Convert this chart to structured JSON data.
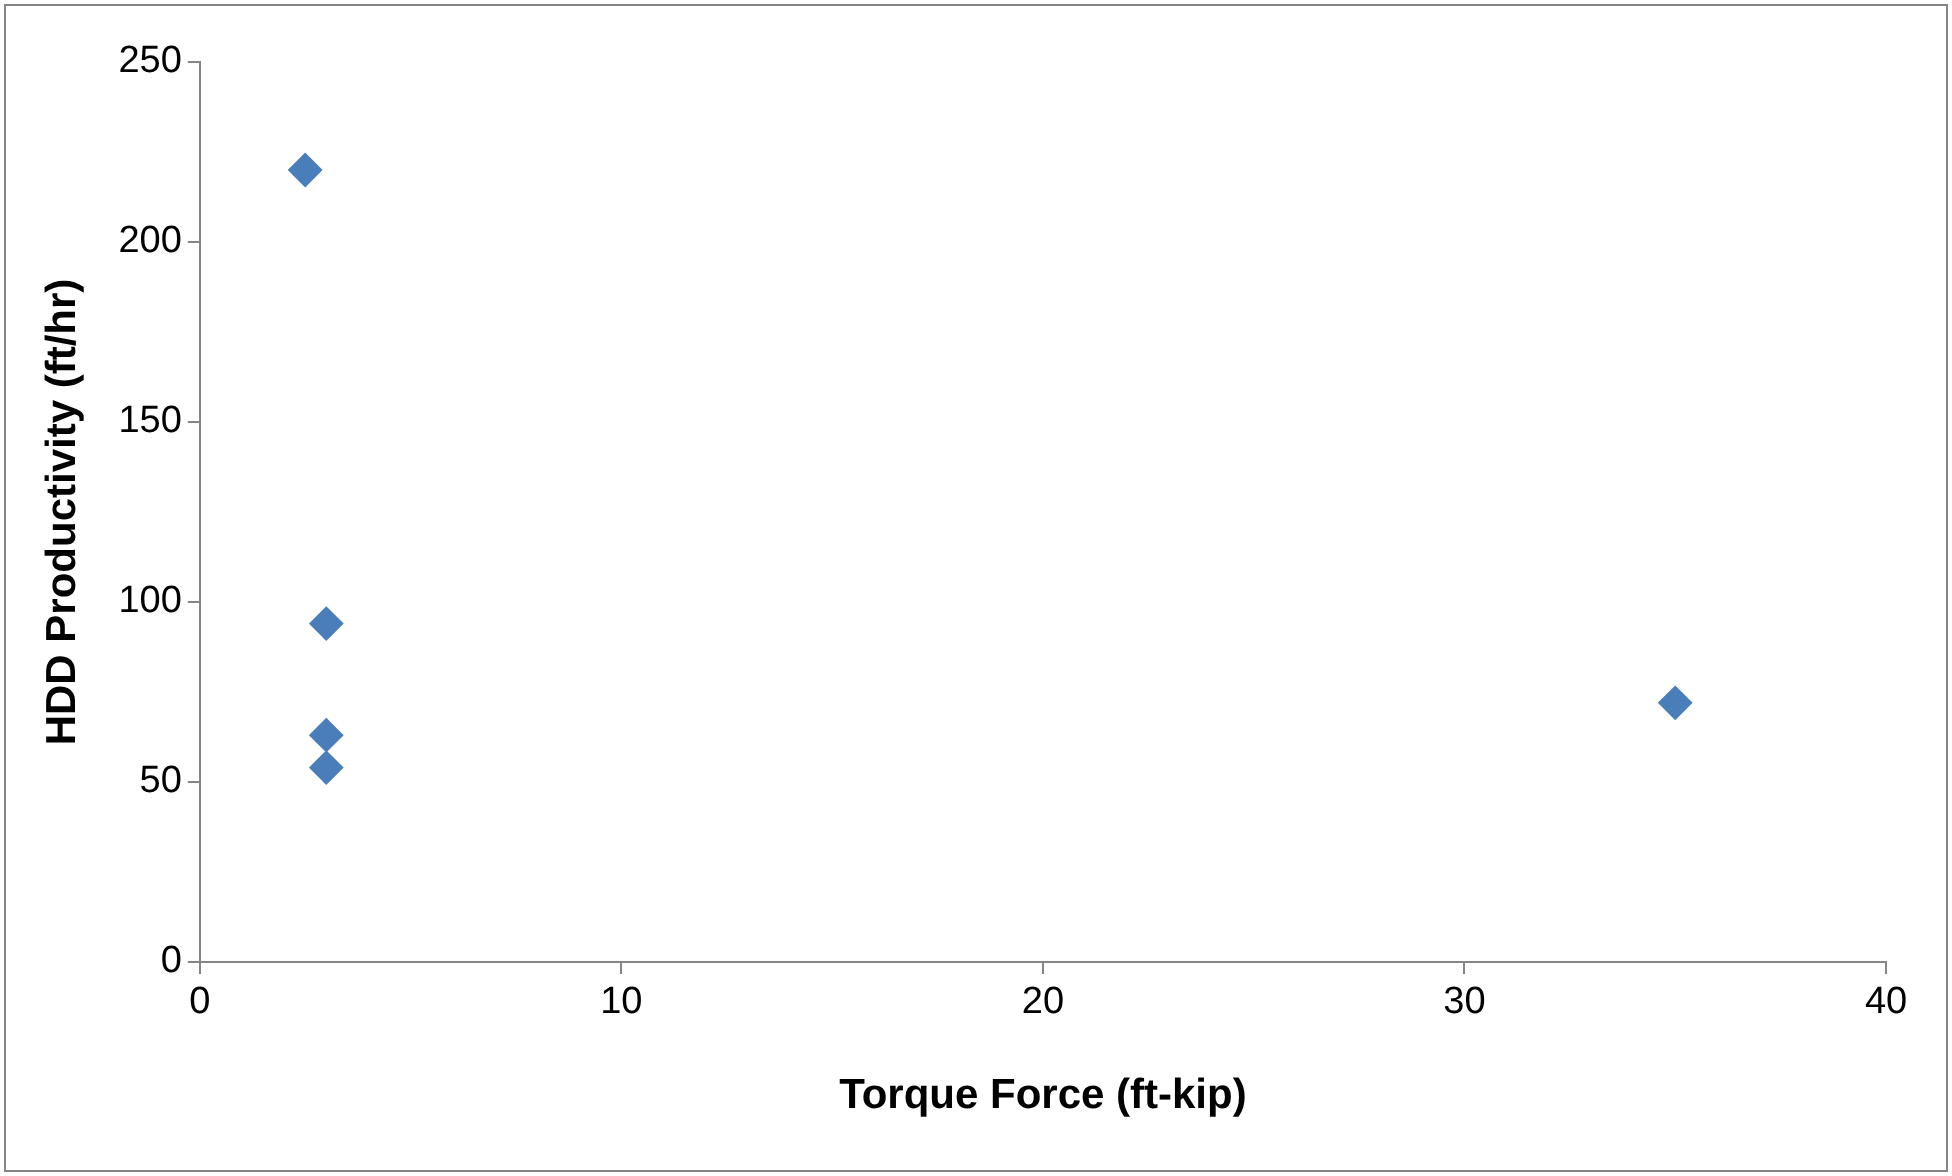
{
  "chart_data": {
    "type": "scatter",
    "xlabel": "Torque Force (ft-kip)",
    "ylabel": "HDD Productivity (ft/hr)",
    "x": [
      2.5,
      3,
      3,
      3,
      35
    ],
    "values": [
      220,
      94,
      63,
      54,
      72
    ],
    "color": "#4a7ebb",
    "marker": "diamond",
    "grid": false,
    "legend": false,
    "xlim": [
      0,
      40
    ],
    "xticks": [
      0,
      10,
      20,
      30,
      40
    ],
    "ylim": [
      0,
      250
    ],
    "yticks": [
      0,
      50,
      100,
      150,
      200,
      250
    ]
  }
}
